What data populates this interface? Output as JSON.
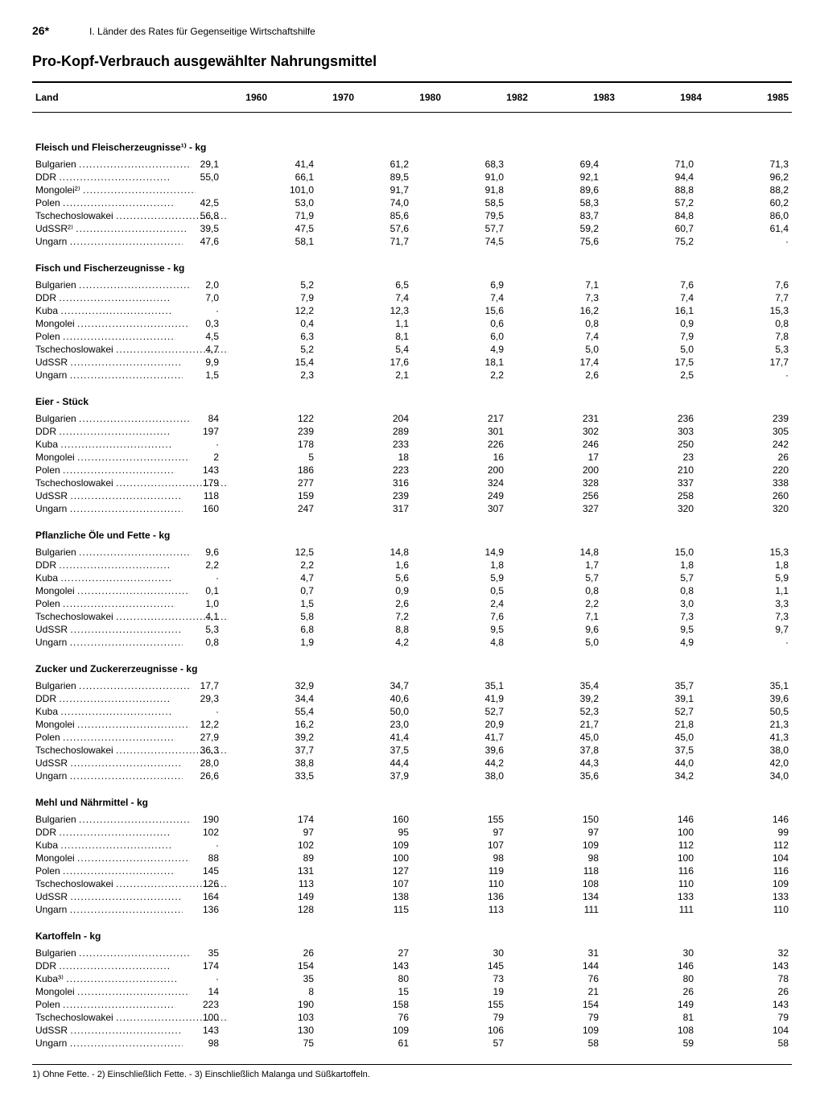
{
  "page_number": "26*",
  "chapter": "I. Länder des Rates für Gegenseitige Wirtschaftshilfe",
  "title": "Pro-Kopf-Verbrauch ausgewählter Nahrungsmittel",
  "columns": [
    "Land",
    "1960",
    "1970",
    "1980",
    "1982",
    "1983",
    "1984",
    "1985"
  ],
  "footnote": "1) Ohne Fette. - 2) Einschließlich Fette. - 3) Einschließlich Malanga und Süßkartoffeln.",
  "sections": [
    {
      "title": "Fleisch und Fleischerzeugnisse¹⁾ - kg",
      "rows": [
        {
          "c": "Bulgarien",
          "v": [
            "29,1",
            "41,4",
            "61,2",
            "68,3",
            "69,4",
            "71,0",
            "71,3"
          ]
        },
        {
          "c": "DDR",
          "v": [
            "55,0",
            "66,1",
            "89,5",
            "91,0",
            "92,1",
            "94,4",
            "96,2"
          ]
        },
        {
          "c": "Mongolei²⁾",
          "v": [
            "",
            "101,0",
            "91,7",
            "91,8",
            "89,6",
            "88,8",
            "88,2"
          ]
        },
        {
          "c": "Polen",
          "v": [
            "42,5",
            "53,0",
            "74,0",
            "58,5",
            "58,3",
            "57,2",
            "60,2"
          ]
        },
        {
          "c": "Tschechoslowakei",
          "v": [
            "56,8",
            "71,9",
            "85,6",
            "79,5",
            "83,7",
            "84,8",
            "86,0"
          ]
        },
        {
          "c": "UdSSR²⁾",
          "v": [
            "39,5",
            "47,5",
            "57,6",
            "57,7",
            "59,2",
            "60,7",
            "61,4"
          ]
        },
        {
          "c": "Ungarn",
          "v": [
            "47,6",
            "58,1",
            "71,7",
            "74,5",
            "75,6",
            "75,2",
            "·"
          ]
        }
      ]
    },
    {
      "title": "Fisch und Fischerzeugnisse - kg",
      "rows": [
        {
          "c": "Bulgarien",
          "v": [
            "2,0",
            "5,2",
            "6,5",
            "6,9",
            "7,1",
            "7,6",
            "7,6"
          ]
        },
        {
          "c": "DDR",
          "v": [
            "7,0",
            "7,9",
            "7,4",
            "7,4",
            "7,3",
            "7,4",
            "7,7"
          ]
        },
        {
          "c": "Kuba",
          "v": [
            "·",
            "12,2",
            "12,3",
            "15,6",
            "16,2",
            "16,1",
            "15,3"
          ]
        },
        {
          "c": "Mongolei",
          "v": [
            "0,3",
            "0,4",
            "1,1",
            "0,6",
            "0,8",
            "0,9",
            "0,8"
          ]
        },
        {
          "c": "Polen",
          "v": [
            "4,5",
            "6,3",
            "8,1",
            "6,0",
            "7,4",
            "7,9",
            "7,8"
          ]
        },
        {
          "c": "Tschechoslowakei",
          "v": [
            "4,7",
            "5,2",
            "5,4",
            "4,9",
            "5,0",
            "5,0",
            "5,3"
          ]
        },
        {
          "c": "UdSSR",
          "v": [
            "9,9",
            "15,4",
            "17,6",
            "18,1",
            "17,4",
            "17,5",
            "17,7"
          ]
        },
        {
          "c": "Ungarn",
          "v": [
            "1,5",
            "2,3",
            "2,1",
            "2,2",
            "2,6",
            "2,5",
            "·"
          ]
        }
      ]
    },
    {
      "title": "Eier - Stück",
      "rows": [
        {
          "c": "Bulgarien",
          "v": [
            "84",
            "122",
            "204",
            "217",
            "231",
            "236",
            "239"
          ]
        },
        {
          "c": "DDR",
          "v": [
            "197",
            "239",
            "289",
            "301",
            "302",
            "303",
            "305"
          ]
        },
        {
          "c": "Kuba",
          "v": [
            "·",
            "178",
            "233",
            "226",
            "246",
            "250",
            "242"
          ]
        },
        {
          "c": "Mongolei",
          "v": [
            "2",
            "5",
            "18",
            "16",
            "17",
            "23",
            "26"
          ]
        },
        {
          "c": "Polen",
          "v": [
            "143",
            "186",
            "223",
            "200",
            "200",
            "210",
            "220"
          ]
        },
        {
          "c": "Tschechoslowakei",
          "v": [
            "179",
            "277",
            "316",
            "324",
            "328",
            "337",
            "338"
          ]
        },
        {
          "c": "UdSSR",
          "v": [
            "118",
            "159",
            "239",
            "249",
            "256",
            "258",
            "260"
          ]
        },
        {
          "c": "Ungarn",
          "v": [
            "160",
            "247",
            "317",
            "307",
            "327",
            "320",
            "320"
          ]
        }
      ]
    },
    {
      "title": "Pflanzliche Öle und Fette - kg",
      "rows": [
        {
          "c": "Bulgarien",
          "v": [
            "9,6",
            "12,5",
            "14,8",
            "14,9",
            "14,8",
            "15,0",
            "15,3"
          ]
        },
        {
          "c": "DDR",
          "v": [
            "2,2",
            "2,2",
            "1,6",
            "1,8",
            "1,7",
            "1,8",
            "1,8"
          ]
        },
        {
          "c": "Kuba",
          "v": [
            "·",
            "4,7",
            "5,6",
            "5,9",
            "5,7",
            "5,7",
            "5,9"
          ]
        },
        {
          "c": "Mongolei",
          "v": [
            "0,1",
            "0,7",
            "0,9",
            "0,5",
            "0,8",
            "0,8",
            "1,1"
          ]
        },
        {
          "c": "Polen",
          "v": [
            "1,0",
            "1,5",
            "2,6",
            "2,4",
            "2,2",
            "3,0",
            "3,3"
          ]
        },
        {
          "c": "Tschechoslowakei",
          "v": [
            "4,1",
            "5,8",
            "7,2",
            "7,6",
            "7,1",
            "7,3",
            "7,3"
          ]
        },
        {
          "c": "UdSSR",
          "v": [
            "5,3",
            "6,8",
            "8,8",
            "9,5",
            "9,6",
            "9,5",
            "9,7"
          ]
        },
        {
          "c": "Ungarn",
          "v": [
            "0,8",
            "1,9",
            "4,2",
            "4,8",
            "5,0",
            "4,9",
            "·"
          ]
        }
      ]
    },
    {
      "title": "Zucker und Zuckererzeugnisse - kg",
      "rows": [
        {
          "c": "Bulgarien",
          "v": [
            "17,7",
            "32,9",
            "34,7",
            "35,1",
            "35,4",
            "35,7",
            "35,1"
          ]
        },
        {
          "c": "DDR",
          "v": [
            "29,3",
            "34,4",
            "40,6",
            "41,9",
            "39,2",
            "39,1",
            "39,6"
          ]
        },
        {
          "c": "Kuba",
          "v": [
            "·",
            "55,4",
            "50,0",
            "52,7",
            "52,3",
            "52,7",
            "50,5"
          ]
        },
        {
          "c": "Mongolei",
          "v": [
            "12,2",
            "16,2",
            "23,0",
            "20,9",
            "21,7",
            "21,8",
            "21,3"
          ]
        },
        {
          "c": "Polen",
          "v": [
            "27,9",
            "39,2",
            "41,4",
            "41,7",
            "45,0",
            "45,0",
            "41,3"
          ]
        },
        {
          "c": "Tschechoslowakei",
          "v": [
            "36,3",
            "37,7",
            "37,5",
            "39,6",
            "37,8",
            "37,5",
            "38,0"
          ]
        },
        {
          "c": "UdSSR",
          "v": [
            "28,0",
            "38,8",
            "44,4",
            "44,2",
            "44,3",
            "44,0",
            "42,0"
          ]
        },
        {
          "c": "Ungarn",
          "v": [
            "26,6",
            "33,5",
            "37,9",
            "38,0",
            "35,6",
            "34,2",
            "34,0"
          ]
        }
      ]
    },
    {
      "title": "Mehl und Nährmittel - kg",
      "rows": [
        {
          "c": "Bulgarien",
          "v": [
            "190",
            "174",
            "160",
            "155",
            "150",
            "146",
            "146"
          ]
        },
        {
          "c": "DDR",
          "v": [
            "102",
            "97",
            "95",
            "97",
            "97",
            "100",
            "99"
          ]
        },
        {
          "c": "Kuba",
          "v": [
            "·",
            "102",
            "109",
            "107",
            "109",
            "112",
            "112"
          ]
        },
        {
          "c": "Mongolei",
          "v": [
            "88",
            "89",
            "100",
            "98",
            "98",
            "100",
            "104"
          ]
        },
        {
          "c": "Polen",
          "v": [
            "145",
            "131",
            "127",
            "119",
            "118",
            "116",
            "116"
          ]
        },
        {
          "c": "Tschechoslowakei",
          "v": [
            "126",
            "113",
            "107",
            "110",
            "108",
            "110",
            "109"
          ]
        },
        {
          "c": "UdSSR",
          "v": [
            "164",
            "149",
            "138",
            "136",
            "134",
            "133",
            "133"
          ]
        },
        {
          "c": "Ungarn",
          "v": [
            "136",
            "128",
            "115",
            "113",
            "111",
            "111",
            "110"
          ]
        }
      ]
    },
    {
      "title": "Kartoffeln - kg",
      "rows": [
        {
          "c": "Bulgarien",
          "v": [
            "35",
            "26",
            "27",
            "30",
            "31",
            "30",
            "32"
          ]
        },
        {
          "c": "DDR",
          "v": [
            "174",
            "154",
            "143",
            "145",
            "144",
            "146",
            "143"
          ]
        },
        {
          "c": "Kuba³⁾",
          "v": [
            "·",
            "35",
            "80",
            "73",
            "76",
            "80",
            "78"
          ]
        },
        {
          "c": "Mongolei",
          "v": [
            "14",
            "8",
            "15",
            "19",
            "21",
            "26",
            "26"
          ]
        },
        {
          "c": "Polen",
          "v": [
            "223",
            "190",
            "158",
            "155",
            "154",
            "149",
            "143"
          ]
        },
        {
          "c": "Tschechoslowakei",
          "v": [
            "100",
            "103",
            "76",
            "79",
            "79",
            "81",
            "79"
          ]
        },
        {
          "c": "UdSSR",
          "v": [
            "143",
            "130",
            "109",
            "106",
            "109",
            "108",
            "104"
          ]
        },
        {
          "c": "Ungarn",
          "v": [
            "98",
            "75",
            "61",
            "57",
            "58",
            "59",
            "58"
          ]
        }
      ]
    }
  ]
}
